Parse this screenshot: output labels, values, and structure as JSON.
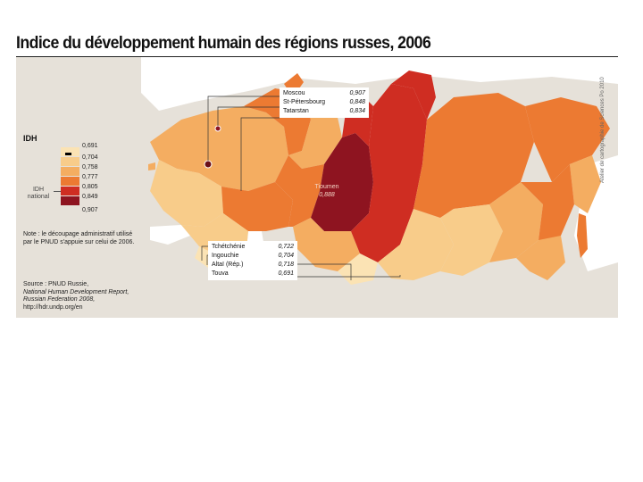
{
  "title": "Indice du développement humain des régions russes, 2006",
  "credit": "Atelier de cartographie de Sciences Po 2010",
  "legend": {
    "title": "IDH",
    "national_label": "IDH national",
    "items": [
      {
        "label": "0,691",
        "color": "#fbe3b4"
      },
      {
        "label": "0,704",
        "color": "#f8cc8a"
      },
      {
        "label": "0,758",
        "color": "#f4ad61"
      },
      {
        "label": "0,777",
        "color": "#ec7a32"
      },
      {
        "label": "0,805",
        "color": "#cf2d22"
      },
      {
        "label": "0,849",
        "color": "#8e1420"
      },
      {
        "label": "0,907",
        "color": ""
      }
    ]
  },
  "callouts_top": [
    {
      "region": "Moscou",
      "value": "0,907"
    },
    {
      "region": "St-Pétersbourg",
      "value": "0,848"
    },
    {
      "region": "Tatarstan",
      "value": "0,834"
    }
  ],
  "callouts_bottom": [
    {
      "region": "Tchétchénie",
      "value": "0,722"
    },
    {
      "region": "Ingouchie",
      "value": "0,704"
    },
    {
      "region": "Altaï (Rép.)",
      "value": "0,718"
    },
    {
      "region": "Touva",
      "value": "0,691"
    }
  ],
  "tioumen": {
    "region": "Tioumen",
    "value": "0,888"
  },
  "note": "Note : le découpage administratif utilisé par le PNUD s'appuie sur celui de 2006.",
  "source": {
    "prefix": "Source : PNUD Russie,",
    "italic": "National Human Development Report, Russian Federation 2008,",
    "url": "http://hdr.undp.org/en"
  },
  "colors": {
    "background_land": "#e9e4dc",
    "sea": "#ffffff",
    "title_rule": "#222222"
  }
}
